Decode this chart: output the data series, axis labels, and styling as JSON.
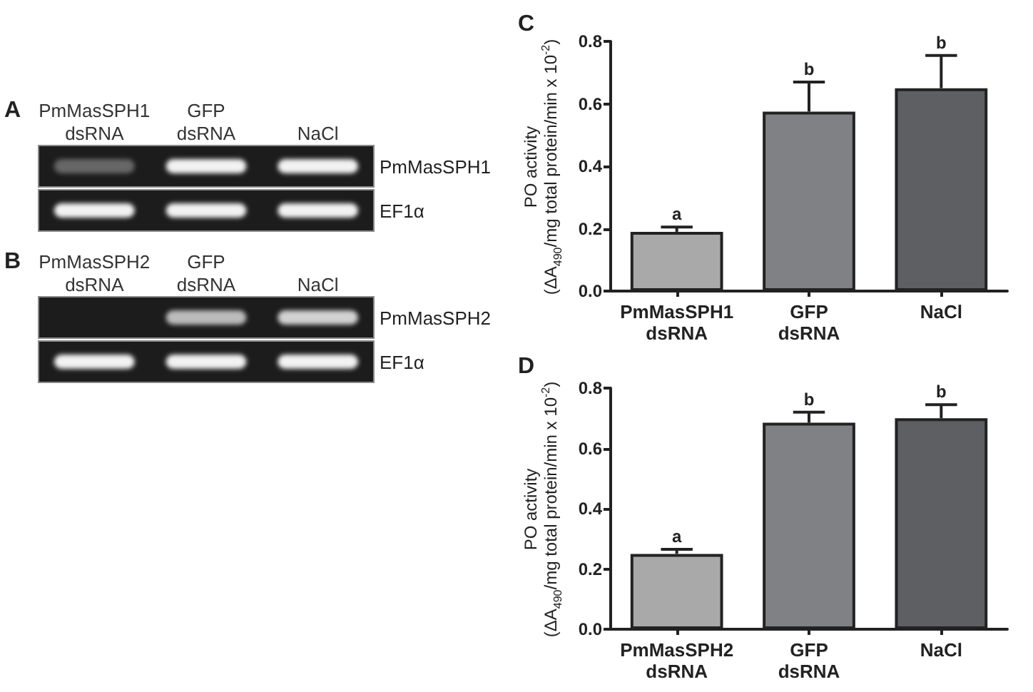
{
  "chart_data": [
    {
      "type": "other",
      "title": "A",
      "categories": [
        "PmMasSPH1\ndsRNA",
        "GFP\ndsRNA",
        "NaCl"
      ],
      "y_categories": [
        "PmMasSPH1",
        "EF1α"
      ]
    },
    {
      "type": "other",
      "title": "B",
      "categories": [
        "PmMasSPH2\ndsRNA",
        "GFP\ndsRNA",
        "NaCl"
      ],
      "y_categories": [
        "PmMasSPH2",
        "EF1α"
      ]
    },
    {
      "type": "bar",
      "title": "C",
      "ylabel": "PO activity\n(ΔA$_{490}$/mg total protein/min x 10$^{-2}$)",
      "categories": [
        "PmMasSPH1\ndsRNA",
        "GFP\ndsRNA",
        "NaCl"
      ],
      "values": [
        0.19,
        0.575,
        0.65
      ],
      "colors": [
        "#a9a9a9",
        "#808184",
        "#5e5f63"
      ],
      "errors": [
        [
          0.19,
          0.205
        ],
        [
          0.575,
          0.67
        ],
        [
          0.65,
          0.755
        ]
      ],
      "ylim": [
        0,
        0.8
      ],
      "yticks": [
        {
          "value": 0,
          "label": "0.0"
        },
        0.2,
        0.4,
        0.6,
        0.8
      ],
      "annotations": [
        {
          "text": "a",
          "x": "PmMasSPH1\ndsRNA",
          "y": 0.205
        },
        {
          "text": "b",
          "x": "GFP\ndsRNA",
          "y": 0.67
        },
        {
          "text": "b",
          "x": "NaCl",
          "y": 0.755
        }
      ]
    },
    {
      "type": "bar",
      "title": "D",
      "ylabel": "PO activity\n(ΔA$_{490}$/mg total protein/min x 10$^{-2}$)",
      "categories": [
        "PmMasSPH2\ndsRNA",
        "GFP\ndsRNA",
        "NaCl"
      ],
      "values": [
        0.25,
        0.685,
        0.7
      ],
      "colors": [
        "#a9a9a9",
        "#808184",
        "#5e5f63"
      ],
      "errors": [
        [
          0.25,
          0.265
        ],
        [
          0.685,
          0.72
        ],
        [
          0.7,
          0.745
        ]
      ],
      "ylim": [
        0,
        0.8
      ],
      "yticks": [
        {
          "value": 0,
          "label": "0.0"
        },
        0.2,
        0.4,
        0.6,
        0.8
      ],
      "annotations": [
        {
          "text": "a",
          "x": "PmMasSPH2\ndsRNA",
          "y": 0.265
        },
        {
          "text": "b",
          "x": "GFP\ndsRNA",
          "y": 0.72
        },
        {
          "text": "b",
          "x": "NaCl",
          "y": 0.745
        }
      ]
    }
  ]
}
